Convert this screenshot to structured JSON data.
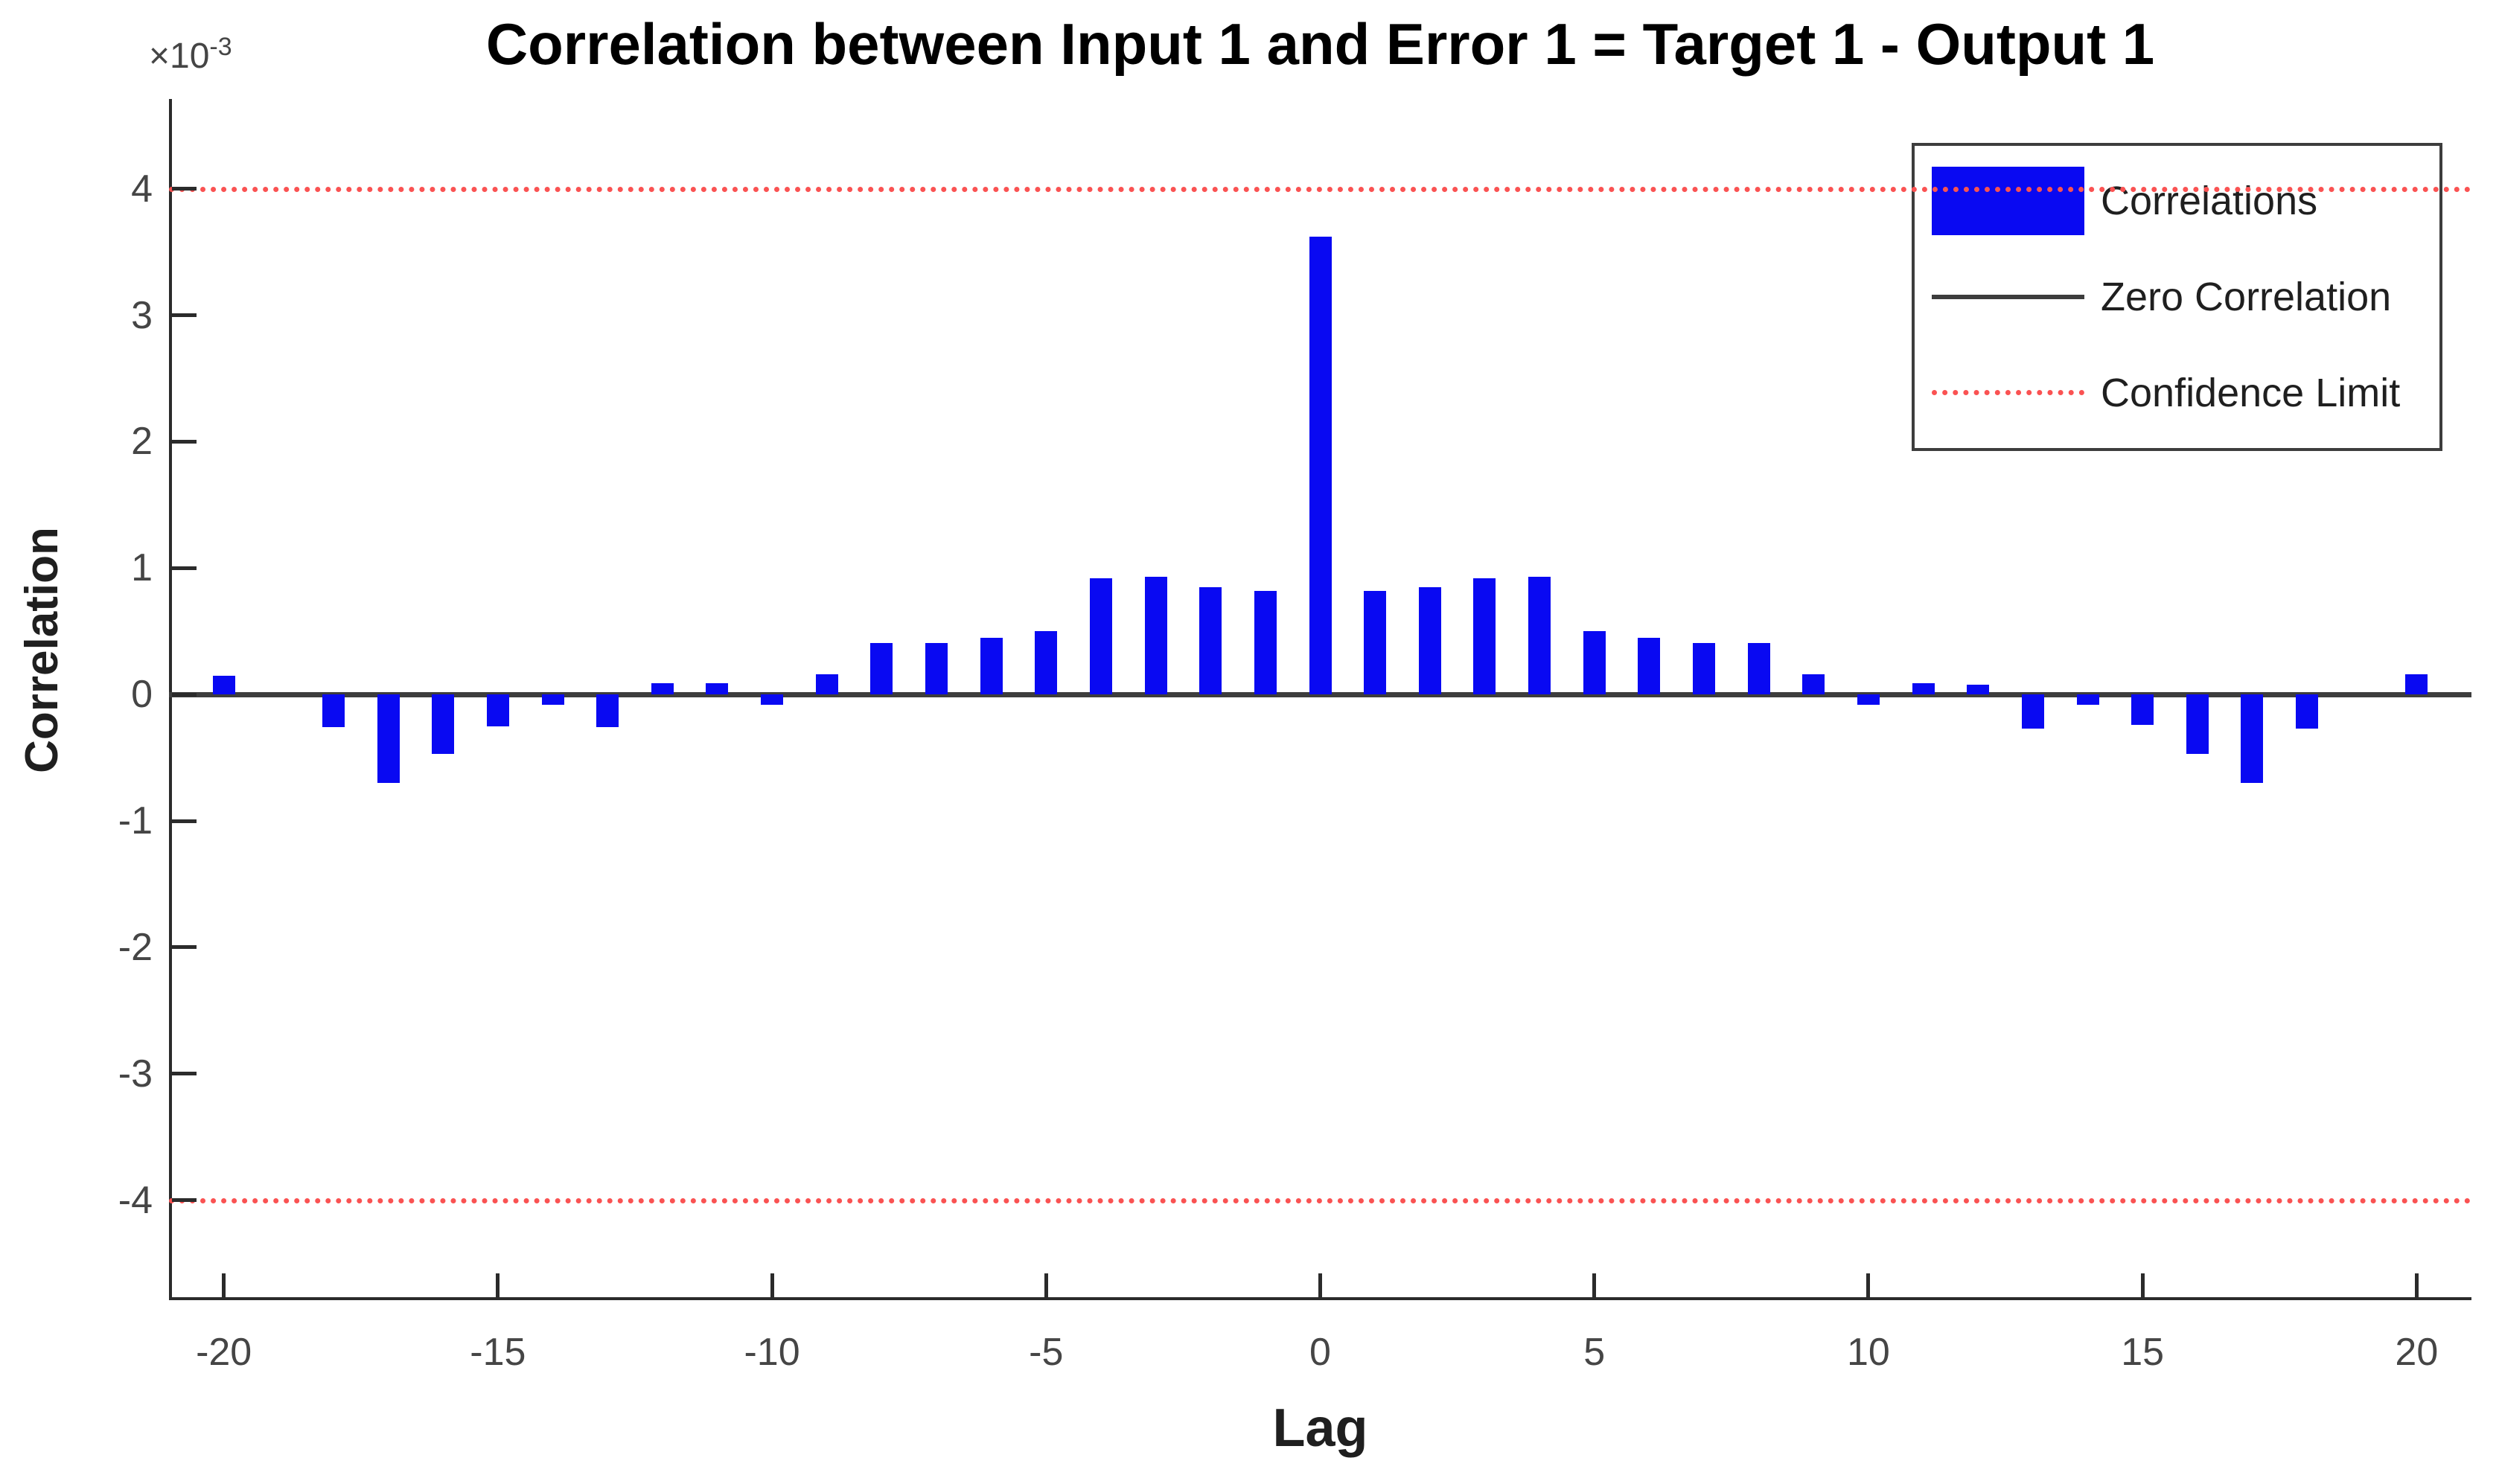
{
  "figure": {
    "title": "Correlation between Input 1 and Error 1 = Target 1 - Output 1",
    "y_multiplier_base": "×10",
    "y_multiplier_exp": "-3"
  },
  "chart_data": {
    "type": "bar",
    "title": "Correlation between Input 1 and Error 1 = Target 1 - Output 1",
    "xlabel": "Lag",
    "ylabel": "Correlation",
    "y_unit_multiplier": "1e-3",
    "x": [
      -20,
      -19,
      -18,
      -17,
      -16,
      -15,
      -14,
      -13,
      -12,
      -11,
      -10,
      -9,
      -8,
      -7,
      -6,
      -5,
      -4,
      -3,
      -2,
      -1,
      0,
      1,
      2,
      3,
      4,
      5,
      6,
      7,
      8,
      9,
      10,
      11,
      12,
      13,
      14,
      15,
      16,
      17,
      18,
      19,
      20
    ],
    "values": [
      0.15,
      0.0,
      -0.26,
      -0.7,
      -0.47,
      -0.25,
      -0.08,
      -0.26,
      0.09,
      0.09,
      -0.08,
      0.16,
      0.41,
      0.41,
      0.45,
      0.5,
      0.92,
      0.93,
      0.85,
      0.82,
      3.62,
      0.82,
      0.85,
      0.92,
      0.93,
      0.5,
      0.45,
      0.41,
      0.41,
      0.16,
      -0.08,
      0.09,
      0.08,
      -0.27,
      -0.08,
      -0.24,
      -0.47,
      -0.7,
      -0.27,
      0.0,
      0.16
    ],
    "xticks": [
      -20,
      -15,
      -10,
      -5,
      0,
      5,
      10,
      15,
      20
    ],
    "yticks": [
      4,
      3,
      2,
      1,
      0,
      -1,
      -2,
      -3,
      -4
    ],
    "xlim": [
      -21,
      21
    ],
    "ylim": [
      -4.79,
      4.71
    ],
    "zero_line": 0,
    "confidence_limit_upper": 4.0,
    "confidence_limit_lower": -4.0,
    "grid": false,
    "legend_position": "top-right",
    "legend": [
      {
        "label": "Correlations",
        "swatch": "blue-rect"
      },
      {
        "label": "Zero Correlation",
        "swatch": "gray-line"
      },
      {
        "label": "Confidence Limit",
        "swatch": "red-dotted-line"
      }
    ],
    "colors": {
      "bar": "#0909f2",
      "zero_line": "#3d3d3d",
      "confidence_line": "#fa5252",
      "spine": "#2b2b2b"
    }
  }
}
